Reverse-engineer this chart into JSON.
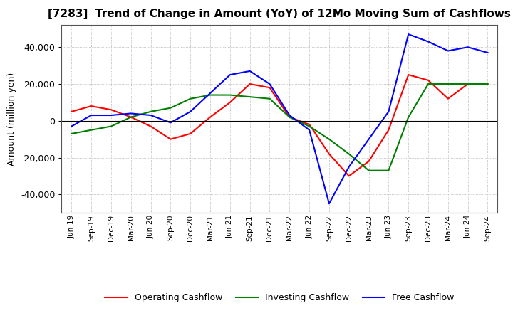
{
  "title": "[7283]  Trend of Change in Amount (YoY) of 12Mo Moving Sum of Cashflows",
  "ylabel": "Amount (million yen)",
  "x_labels": [
    "Jun-19",
    "Sep-19",
    "Dec-19",
    "Mar-20",
    "Jun-20",
    "Sep-20",
    "Dec-20",
    "Mar-21",
    "Jun-21",
    "Sep-21",
    "Dec-21",
    "Mar-22",
    "Jun-22",
    "Sep-22",
    "Dec-22",
    "Mar-23",
    "Jun-23",
    "Sep-23",
    "Dec-23",
    "Mar-24",
    "Jun-24",
    "Sep-24"
  ],
  "operating": [
    5000,
    8000,
    6000,
    2000,
    -3000,
    -10000,
    -7000,
    2000,
    10000,
    20000,
    18000,
    2000,
    -2000,
    -18000,
    -30000,
    -22000,
    -5000,
    25000,
    22000,
    12000,
    20000,
    20000
  ],
  "investing": [
    -7000,
    -5000,
    -3000,
    2000,
    5000,
    7000,
    12000,
    14000,
    14000,
    13000,
    12000,
    2000,
    -3000,
    -10000,
    -18000,
    -27000,
    -27000,
    2000,
    20000,
    20000,
    20000,
    20000
  ],
  "free": [
    -3000,
    3000,
    3000,
    4000,
    3000,
    -1000,
    5000,
    15000,
    25000,
    27000,
    20000,
    3000,
    -5000,
    -45000,
    -25000,
    -10000,
    5000,
    47000,
    43000,
    38000,
    40000,
    37000
  ],
  "operating_color": "#ff0000",
  "investing_color": "#008000",
  "free_color": "#0000ff",
  "ylim": [
    -50000,
    52000
  ],
  "yticks": [
    -40000,
    -20000,
    0,
    20000,
    40000
  ],
  "background_color": "#ffffff",
  "legend_labels": [
    "Operating Cashflow",
    "Investing Cashflow",
    "Free Cashflow"
  ],
  "grid_color": "#999999",
  "title_fontsize": 11,
  "ylabel_fontsize": 9
}
